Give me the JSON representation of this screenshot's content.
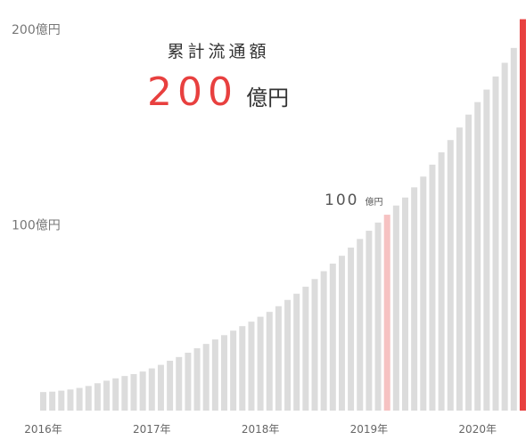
{
  "chart_data": {
    "type": "bar",
    "headline": "累計流通額",
    "total_number": "200",
    "total_unit": "億円",
    "callout_number": "100",
    "callout_unit": "億円",
    "yticks": [
      {
        "value": 200,
        "label": "200億円"
      },
      {
        "value": 100,
        "label": "100億円"
      }
    ],
    "xticks": [
      {
        "index": 0,
        "label": "2016年"
      },
      {
        "index": 12,
        "label": "2017年"
      },
      {
        "index": 24,
        "label": "2018年"
      },
      {
        "index": 36,
        "label": "2019年"
      },
      {
        "index": 48,
        "label": "2020年"
      }
    ],
    "ylim": [
      0,
      200
    ],
    "grid": false,
    "unit": "億円",
    "values": [
      9.5,
      9.7,
      10.2,
      10.8,
      11.6,
      12.6,
      14.0,
      15.3,
      16.5,
      17.7,
      18.7,
      20.0,
      21.6,
      23.4,
      25.5,
      27.4,
      29.6,
      31.9,
      34.1,
      36.4,
      38.6,
      40.9,
      43.2,
      45.5,
      48.0,
      50.5,
      53.4,
      56.6,
      59.8,
      63.4,
      67.3,
      71.3,
      75.2,
      79.2,
      83.4,
      87.8,
      92.0,
      96.2,
      100.2,
      104.9,
      109.0,
      114.2,
      119.7,
      125.8,
      132.1,
      138.4,
      144.8,
      151.4,
      157.8,
      164.2,
      170.9,
      177.9,
      185.5,
      200.2
    ],
    "highlight_index": 38,
    "final_index": 53,
    "colors": {
      "bar": "#dcdcdc",
      "highlight": "#f6c2c2",
      "final": "#e8403f",
      "accent_text": "#e8403f"
    }
  }
}
